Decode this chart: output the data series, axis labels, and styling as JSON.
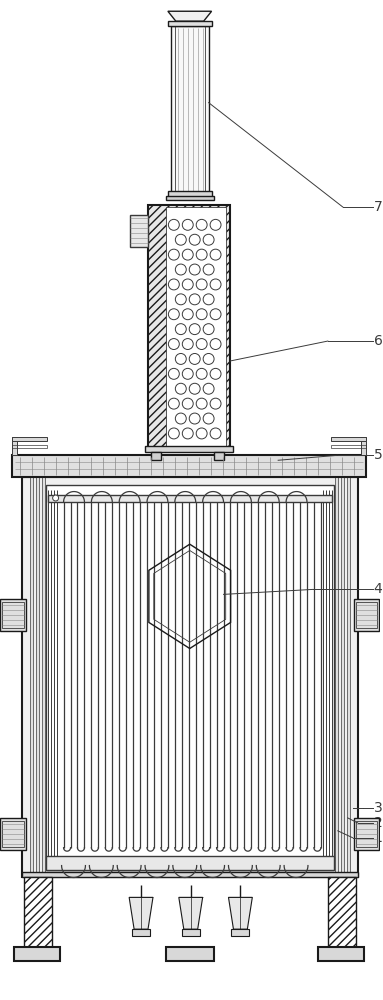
{
  "bg_color": "#ffffff",
  "lc": "#3a3a3a",
  "lcd": "#1a1a1a",
  "lcl": "#888888",
  "lc_green": "#4a7a4a",
  "label_fontsize": 10,
  "ann_color": "#3a3a3a",
  "ann_lw": 0.7,
  "lw_main": 1.0,
  "lw_thick": 1.5,
  "lw_thin": 0.6
}
